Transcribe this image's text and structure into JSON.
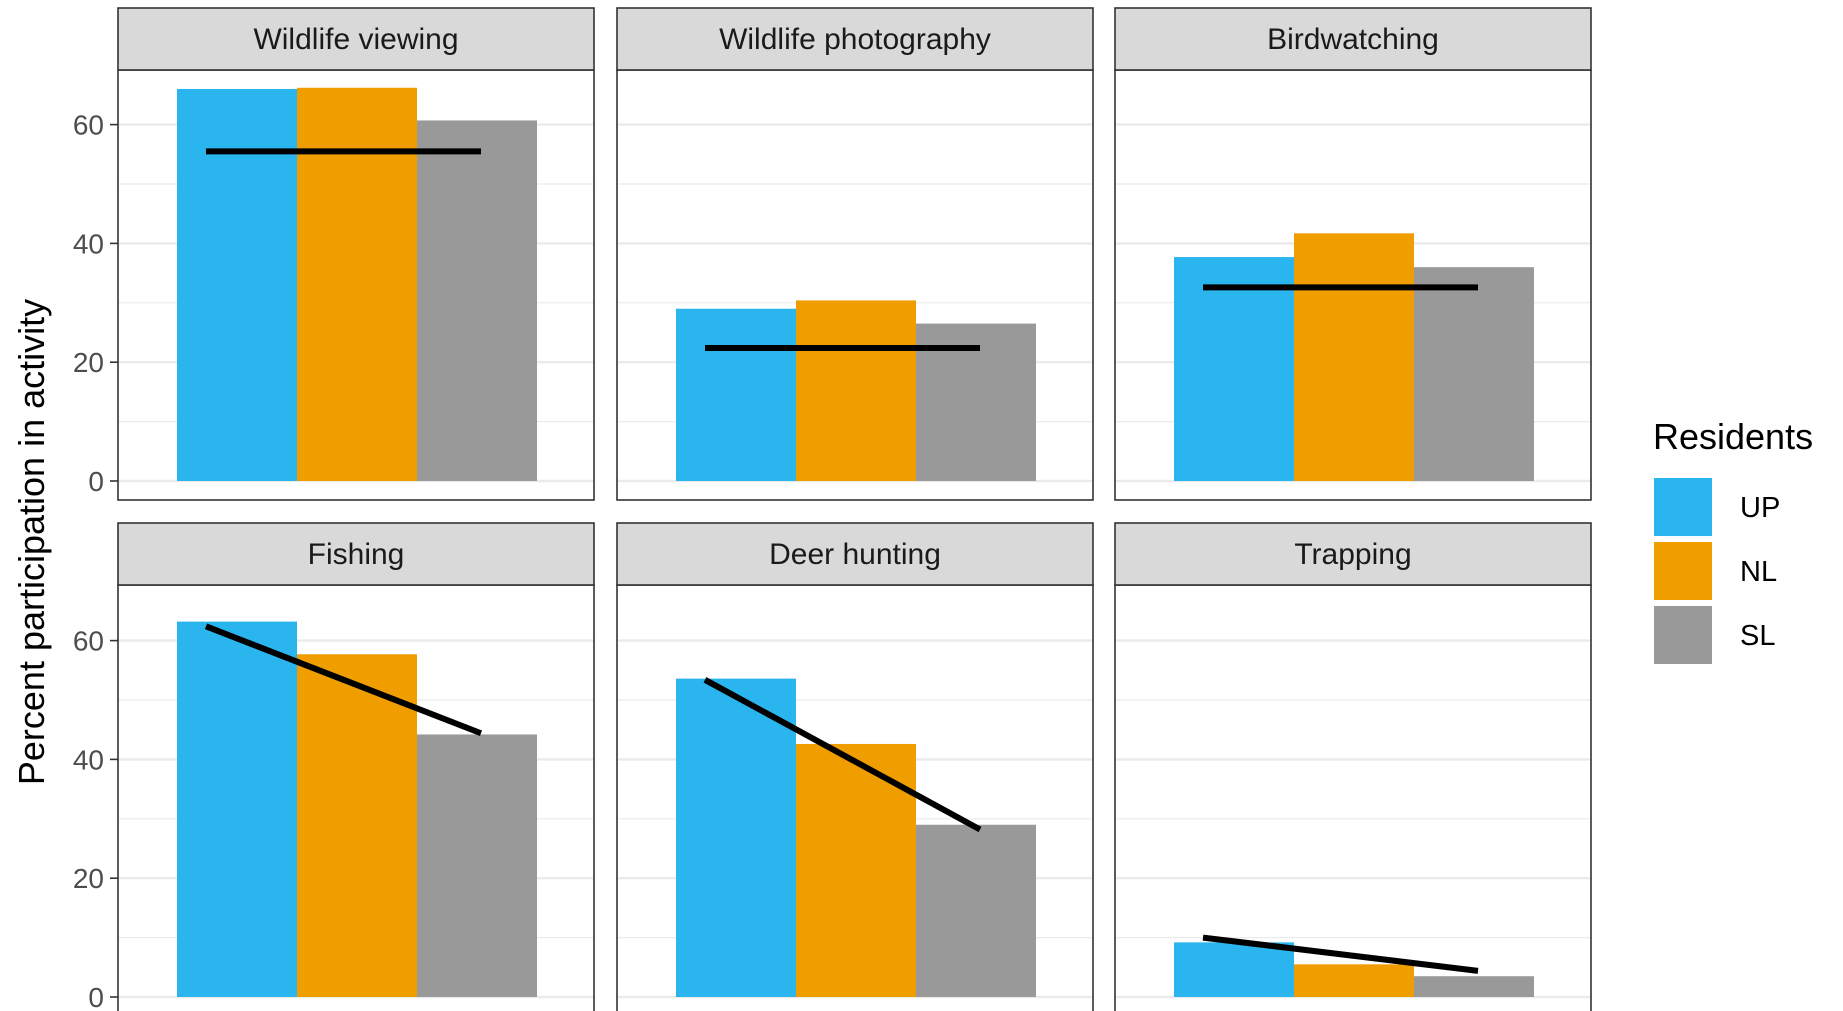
{
  "chart_data": {
    "type": "bar",
    "ylabel": "Percent participation in activity",
    "ylim": [
      0,
      70
    ],
    "yticks": [
      0,
      20,
      40,
      60
    ],
    "grid": true,
    "legend": {
      "title": "Residents",
      "placement": "right",
      "entries": [
        "UP",
        "NL",
        "SL"
      ]
    },
    "colors": {
      "UP": "#2bb5ef",
      "NL": "#f09d00",
      "SL": "#999999",
      "trend": "#000000"
    },
    "categories": [
      "UP",
      "NL",
      "SL"
    ],
    "facets": [
      {
        "name": "Wildlife viewing",
        "values": [
          66,
          66.2,
          60.7
        ],
        "trend": [
          55.5,
          55.5
        ]
      },
      {
        "name": "Wildlife photography",
        "values": [
          29,
          30.4,
          26.5
        ],
        "trend": [
          22.4,
          22.4
        ]
      },
      {
        "name": "Birdwatching",
        "values": [
          37.7,
          41.7,
          36
        ],
        "trend": [
          32.6,
          32.6
        ]
      },
      {
        "name": "Fishing",
        "values": [
          63.2,
          57.7,
          44.2
        ],
        "trend": [
          62.4,
          44.4
        ]
      },
      {
        "name": "Deer hunting",
        "values": [
          53.6,
          42.6,
          29
        ],
        "trend": [
          53.4,
          28.2
        ]
      },
      {
        "name": "Trapping",
        "values": [
          9.2,
          5.5,
          3.5
        ],
        "trend": [
          10,
          4.4
        ]
      }
    ]
  }
}
